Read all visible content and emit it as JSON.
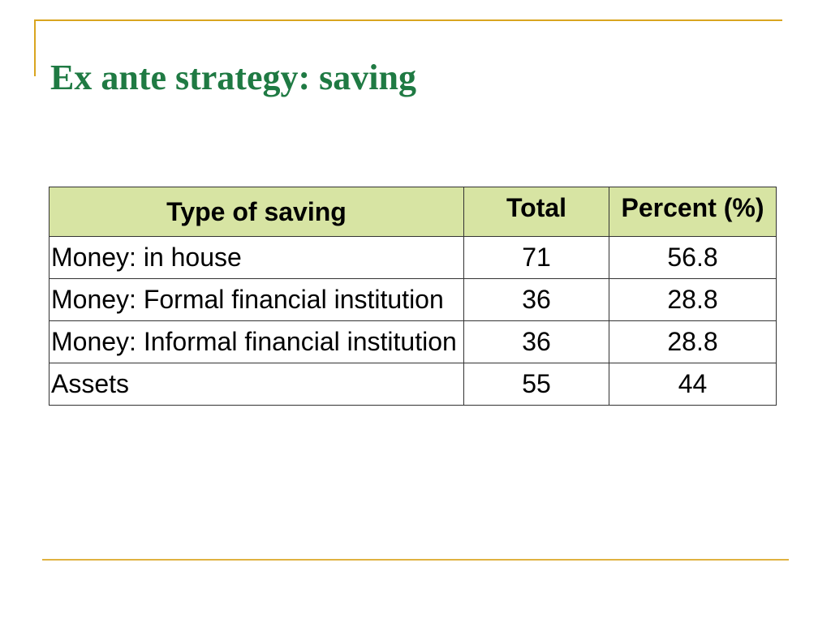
{
  "slide": {
    "title": "Ex ante strategy: saving"
  },
  "table": {
    "headers": [
      "Type of saving",
      "Total",
      "Percent (%)"
    ],
    "rows": [
      {
        "type": "Money: in house",
        "total": "71",
        "percent": "56.8"
      },
      {
        "type": "Money: Formal financial institution",
        "total": "36",
        "percent": "28.8"
      },
      {
        "type": "Money: Informal financial institution",
        "total": "36",
        "percent": "28.8"
      },
      {
        "type": "Assets",
        "total": "55",
        "percent": "44"
      }
    ]
  },
  "colors": {
    "title": "#1f7a43",
    "frame": "#d9a520",
    "header_fill": "#d7e4a3"
  }
}
